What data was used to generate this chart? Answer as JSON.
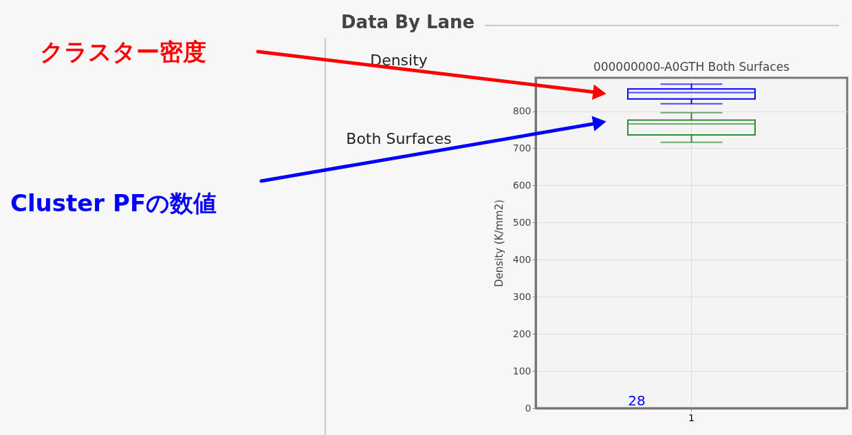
{
  "chart_data": {
    "type": "box",
    "title": "000000000-A0GTH Both Surfaces",
    "ylabel": "Density (K/mm2)",
    "categories": [
      "1"
    ],
    "series": [
      {
        "color": "#0000ff",
        "boxes": [
          {
            "low": 820,
            "q1": 833,
            "median": 850,
            "q3": 860,
            "high": 873
          }
        ]
      },
      {
        "color": "#2e8b2e",
        "boxes": [
          {
            "low": 716,
            "q1": 736,
            "median": 766,
            "q3": 776,
            "high": 796
          }
        ]
      }
    ],
    "ylim": [
      0,
      890
    ],
    "yticks": [
      0,
      100,
      200,
      300,
      400,
      500,
      600,
      700,
      800
    ],
    "grid": true,
    "annotations": [
      "Data By Lane",
      "Density",
      "Both Surfaces",
      "クラスター密度",
      "Cluster PFの数値",
      "28"
    ]
  }
}
